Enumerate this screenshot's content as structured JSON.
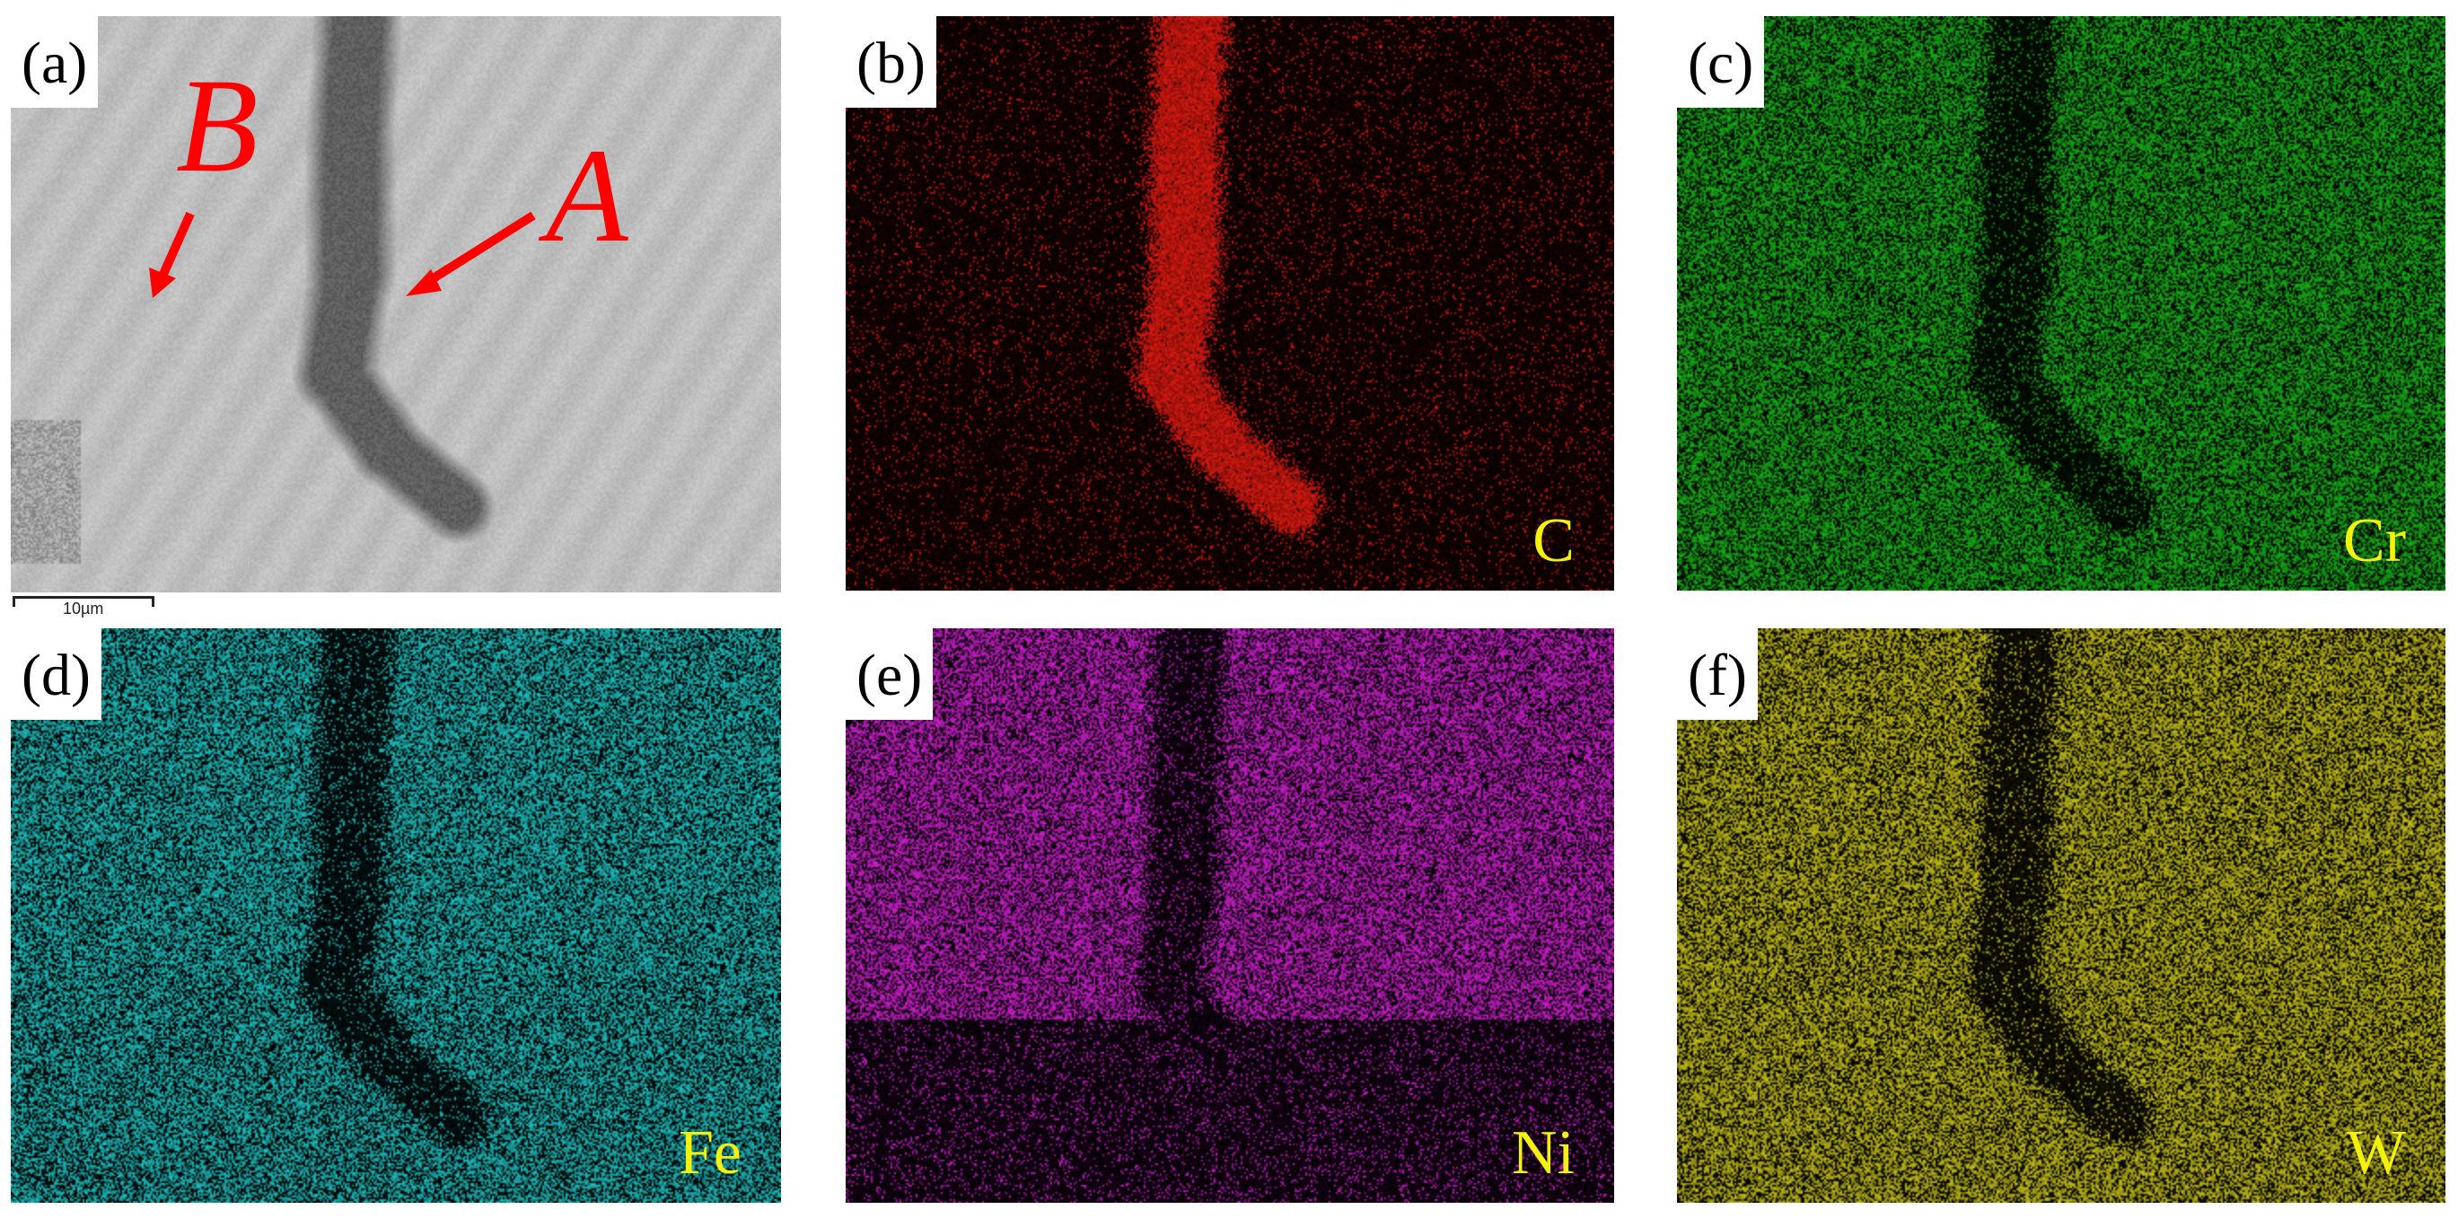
{
  "panels": [
    {
      "label": "(a)",
      "element": "",
      "kind": "sem",
      "color": "#b8b8b8"
    },
    {
      "label": "(b)",
      "element": "C",
      "kind": "map",
      "color": "#e01a10",
      "feature": "bright"
    },
    {
      "label": "(c)",
      "element": "Cr",
      "kind": "map",
      "color": "#18b418",
      "feature": "dark"
    },
    {
      "label": "(d)",
      "element": "Fe",
      "kind": "map",
      "color": "#20c4c4",
      "feature": "dark"
    },
    {
      "label": "(e)",
      "element": "Ni",
      "kind": "map",
      "color": "#d020d0",
      "feature": "dark_band"
    },
    {
      "label": "(f)",
      "element": "W",
      "kind": "map",
      "color": "#c8c21a",
      "feature": "dark"
    }
  ],
  "annotations": {
    "a": "A",
    "b": "B",
    "arrow_color": "#ff0000"
  },
  "scale_bar": {
    "text": "10µm"
  },
  "element_label_color": "#f2f20a"
}
